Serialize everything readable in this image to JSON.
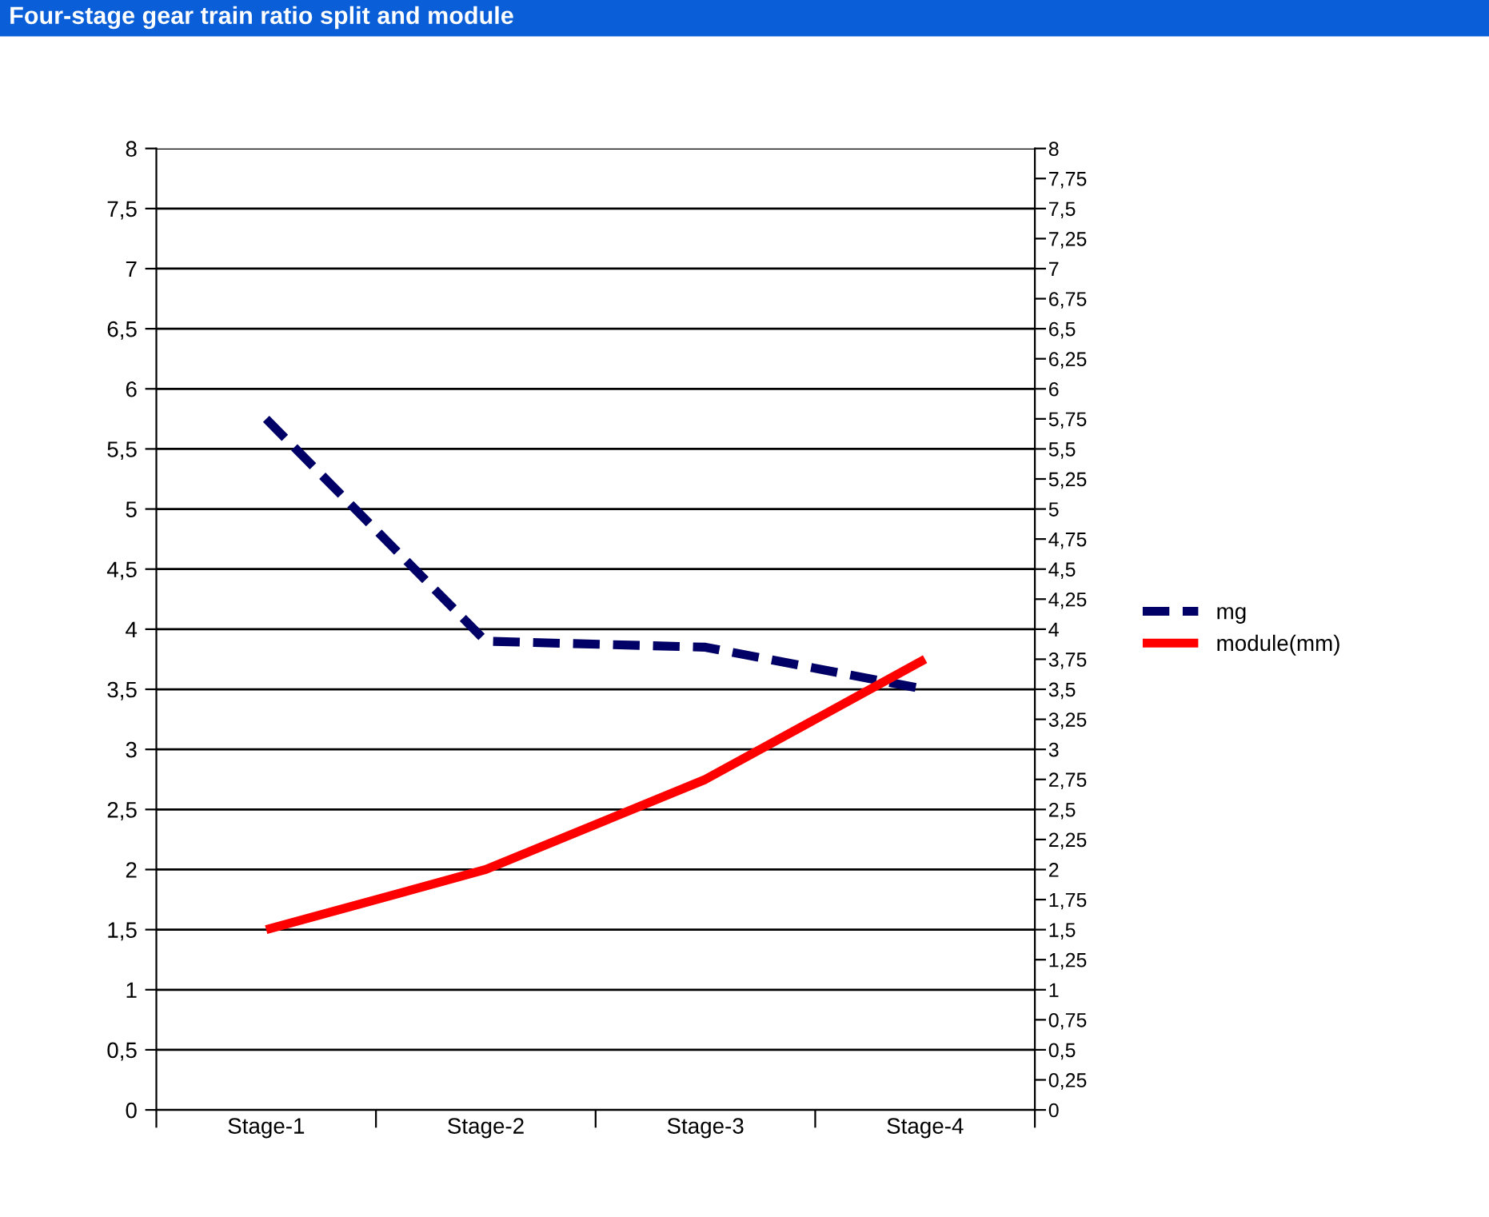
{
  "chart_data": {
    "type": "line",
    "title": "Four-stage gear train ratio split and module",
    "categories": [
      "Stage-1",
      "Stage-2",
      "Stage-3",
      "Stage-4"
    ],
    "series": [
      {
        "name": "mg",
        "color": "#000066",
        "values": [
          5.75,
          3.9,
          3.85,
          3.5
        ],
        "line_style": "dashed"
      },
      {
        "name": "module(mm)",
        "color": "#ff0000",
        "values": [
          1.5,
          2.0,
          2.75,
          3.75
        ],
        "line_style": "solid"
      }
    ],
    "ylim": [
      0,
      8
    ],
    "yticks": [
      0,
      {
        "value": 0.5,
        "label": "0,5"
      },
      1,
      {
        "value": 1.5,
        "label": "1,5"
      },
      2,
      {
        "value": 2.5,
        "label": "2,5"
      },
      3,
      {
        "value": 3.5,
        "label": "3,5"
      },
      4,
      {
        "value": 4.5,
        "label": "4,5"
      },
      5,
      {
        "value": 5.5,
        "label": "5,5"
      },
      6,
      {
        "value": 6.5,
        "label": "6,5"
      },
      7,
      {
        "value": 7.5,
        "label": "7,5"
      },
      8
    ],
    "y2lim": [
      0,
      8
    ],
    "y2ticks": [
      0,
      {
        "value": 0.25,
        "label": "0,25"
      },
      {
        "value": 0.5,
        "label": "0,5"
      },
      {
        "value": 0.75,
        "label": "0,75"
      },
      1,
      {
        "value": 1.25,
        "label": "1,25"
      },
      {
        "value": 1.5,
        "label": "1,5"
      },
      {
        "value": 1.75,
        "label": "1,75"
      },
      2,
      {
        "value": 2.25,
        "label": "2,25"
      },
      {
        "value": 2.5,
        "label": "2,5"
      },
      {
        "value": 2.75,
        "label": "2,75"
      },
      3,
      {
        "value": 3.25,
        "label": "3,25"
      },
      {
        "value": 3.5,
        "label": "3,5"
      },
      {
        "value": 3.75,
        "label": "3,75"
      },
      4,
      {
        "value": 4.25,
        "label": "4,25"
      },
      {
        "value": 4.5,
        "label": "4,5"
      },
      {
        "value": 4.75,
        "label": "4,75"
      },
      5,
      {
        "value": 5.25,
        "label": "5,25"
      },
      {
        "value": 5.5,
        "label": "5,5"
      },
      {
        "value": 5.75,
        "label": "5,75"
      },
      6,
      {
        "value": 6.25,
        "label": "6,25"
      },
      {
        "value": 6.5,
        "label": "6,5"
      },
      {
        "value": 6.75,
        "label": "6,75"
      },
      7,
      {
        "value": 7.25,
        "label": "7,25"
      },
      {
        "value": 7.5,
        "label": "7,5"
      },
      {
        "value": 7.75,
        "label": "7,75"
      },
      8
    ],
    "grid": "y",
    "legend": "right"
  }
}
